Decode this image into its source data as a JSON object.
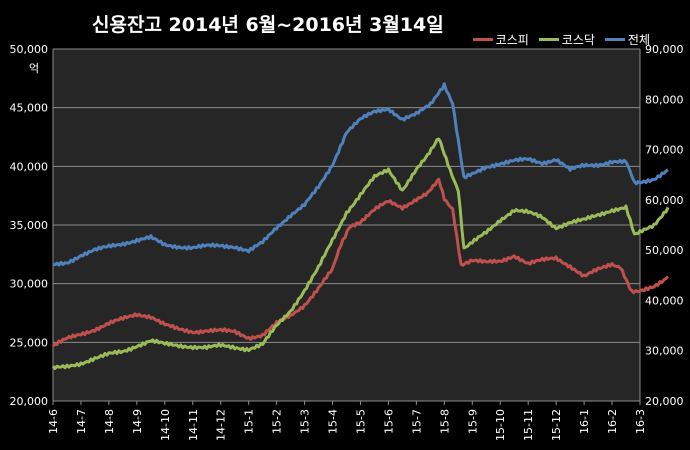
{
  "chart_data": {
    "type": "line",
    "title": "신용잔고 2014년 6월~2016년 3월14일",
    "y_unit_label": "억",
    "x_tick_labels": [
      "14-6",
      "14-7",
      "14-8",
      "14-9",
      "14-10",
      "14-11",
      "14-12",
      "15-1",
      "15-2",
      "15-3",
      "15-4",
      "15-5",
      "15-6",
      "15-7",
      "15-8",
      "15-9",
      "15-10",
      "15-11",
      "15-12",
      "16-1",
      "16-2",
      "16-3"
    ],
    "left_axis": {
      "ylim": [
        20000,
        50000
      ],
      "ticks": [
        "20,000",
        "25,000",
        "30,000",
        "35,000",
        "40,000",
        "45,000",
        "50,000"
      ]
    },
    "right_axis": {
      "ylim": [
        20000,
        90000
      ],
      "ticks": [
        "20,000",
        "30,000",
        "40,000",
        "50,000",
        "60,000",
        "70,000",
        "80,000",
        "90,000"
      ]
    },
    "grid": "horizontal",
    "legend_position": "top-right",
    "series": [
      {
        "name": "코스피",
        "axis": "left",
        "color": "#c0504d",
        "points": [
          [
            0,
            24700
          ],
          [
            0.5,
            25300
          ],
          [
            1,
            25700
          ],
          [
            1.5,
            26100
          ],
          [
            2,
            26600
          ],
          [
            2.5,
            27000
          ],
          [
            3,
            27400
          ],
          [
            3.5,
            27200
          ],
          [
            4,
            26500
          ],
          [
            4.5,
            26100
          ],
          [
            5,
            25900
          ],
          [
            5.5,
            26000
          ],
          [
            6,
            26000
          ],
          [
            6.5,
            25900
          ],
          [
            7,
            25400
          ],
          [
            7.5,
            25600
          ],
          [
            8,
            26600
          ],
          [
            8.5,
            27300
          ],
          [
            9,
            28200
          ],
          [
            9.5,
            29600
          ],
          [
            10,
            31200
          ],
          [
            10.3,
            33400
          ],
          [
            10.6,
            34800
          ],
          [
            11,
            35300
          ],
          [
            11.5,
            36300
          ],
          [
            12,
            37000
          ],
          [
            12.5,
            36500
          ],
          [
            13,
            37200
          ],
          [
            13.4,
            37800
          ],
          [
            13.8,
            38900
          ],
          [
            14,
            37200
          ],
          [
            14.3,
            36400
          ],
          [
            14.6,
            31500
          ],
          [
            15,
            32000
          ],
          [
            15.5,
            31800
          ],
          [
            16,
            31900
          ],
          [
            16.5,
            32400
          ],
          [
            17,
            31700
          ],
          [
            17.5,
            32000
          ],
          [
            18,
            32200
          ],
          [
            18.5,
            31500
          ],
          [
            19,
            30600
          ],
          [
            19.5,
            31200
          ],
          [
            20,
            31700
          ],
          [
            20.3,
            31400
          ],
          [
            20.7,
            29400
          ],
          [
            21,
            29300
          ],
          [
            21.5,
            29700
          ],
          [
            22,
            30600
          ]
        ]
      },
      {
        "name": "코스닥",
        "axis": "right",
        "color": "#9bbb59",
        "points": [
          [
            0,
            26500
          ],
          [
            0.5,
            26800
          ],
          [
            1,
            27500
          ],
          [
            1.5,
            28500
          ],
          [
            2,
            29300
          ],
          [
            2.5,
            29800
          ],
          [
            3,
            31000
          ],
          [
            3.5,
            32000
          ],
          [
            4,
            31300
          ],
          [
            4.5,
            31000
          ],
          [
            5,
            30800
          ],
          [
            5.5,
            30600
          ],
          [
            6,
            31000
          ],
          [
            6.5,
            30700
          ],
          [
            7,
            30300
          ],
          [
            7.5,
            31200
          ],
          [
            8,
            35000
          ],
          [
            8.5,
            38000
          ],
          [
            9,
            42000
          ],
          [
            9.5,
            46500
          ],
          [
            10,
            52000
          ],
          [
            10.5,
            57500
          ],
          [
            11,
            61000
          ],
          [
            11.5,
            64500
          ],
          [
            12,
            66000
          ],
          [
            12.5,
            62000
          ],
          [
            13,
            66000
          ],
          [
            13.4,
            69000
          ],
          [
            13.8,
            72500
          ],
          [
            14.2,
            66000
          ],
          [
            14.5,
            62000
          ],
          [
            14.7,
            50500
          ],
          [
            15,
            51500
          ],
          [
            15.5,
            53500
          ],
          [
            16,
            56000
          ],
          [
            16.5,
            58000
          ],
          [
            17,
            57500
          ],
          [
            17.5,
            56500
          ],
          [
            18,
            54500
          ],
          [
            18.5,
            55500
          ],
          [
            19,
            56000
          ],
          [
            19.5,
            57000
          ],
          [
            20,
            58000
          ],
          [
            20.5,
            58500
          ],
          [
            20.8,
            53000
          ],
          [
            21,
            53500
          ],
          [
            21.5,
            55000
          ],
          [
            22,
            58500
          ]
        ]
      },
      {
        "name": "전체",
        "axis": "right",
        "color": "#4f81bd",
        "points": [
          [
            0,
            47000
          ],
          [
            0.5,
            47500
          ],
          [
            1,
            49000
          ],
          [
            1.5,
            50000
          ],
          [
            2,
            50700
          ],
          [
            2.5,
            51300
          ],
          [
            3,
            52000
          ],
          [
            3.5,
            52500
          ],
          [
            4,
            51000
          ],
          [
            4.5,
            50700
          ],
          [
            5,
            50500
          ],
          [
            5.5,
            50800
          ],
          [
            6,
            50900
          ],
          [
            6.5,
            50700
          ],
          [
            7,
            49800
          ],
          [
            7.5,
            51500
          ],
          [
            8,
            54500
          ],
          [
            8.5,
            57000
          ],
          [
            9,
            59000
          ],
          [
            9.5,
            62500
          ],
          [
            10,
            67000
          ],
          [
            10.5,
            73500
          ],
          [
            11,
            76000
          ],
          [
            11.5,
            77500
          ],
          [
            12,
            78200
          ],
          [
            12.5,
            76000
          ],
          [
            13,
            77000
          ],
          [
            13.5,
            79000
          ],
          [
            14,
            83000
          ],
          [
            14.3,
            79000
          ],
          [
            14.7,
            64500
          ],
          [
            15,
            65000
          ],
          [
            15.5,
            66500
          ],
          [
            16,
            67300
          ],
          [
            16.5,
            67800
          ],
          [
            17,
            68000
          ],
          [
            17.5,
            67300
          ],
          [
            18,
            68100
          ],
          [
            18.5,
            66000
          ],
          [
            19,
            66800
          ],
          [
            19.5,
            67000
          ],
          [
            20,
            67600
          ],
          [
            20.5,
            67500
          ],
          [
            20.8,
            63500
          ],
          [
            21,
            63400
          ],
          [
            21.5,
            64200
          ],
          [
            22,
            66000
          ]
        ]
      }
    ]
  }
}
